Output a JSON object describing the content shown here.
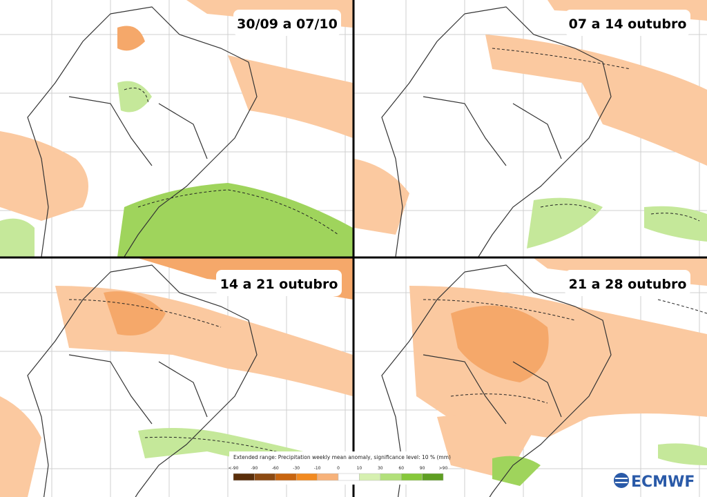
{
  "panels": [
    {
      "label": "30/09 a 07/10"
    },
    {
      "label": "07 a 14 outubro"
    },
    {
      "label": "14 a 21 outubro"
    },
    {
      "label": "21 a 28 outubro"
    }
  ],
  "legend": {
    "title": "Extended range: Precipitation weekly mean anomaly, significance level: 10 % (mm)",
    "ticks": [
      "<-90",
      "-90",
      "-60",
      "-30",
      "-10",
      "0",
      "10",
      "30",
      "60",
      "90",
      ">90"
    ]
  },
  "logo": "ECMWF"
}
